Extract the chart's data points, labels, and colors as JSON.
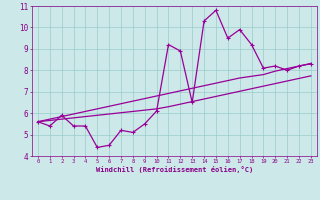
{
  "xlabel": "Windchill (Refroidissement éolien,°C)",
  "x": [
    0,
    1,
    2,
    3,
    4,
    5,
    6,
    7,
    8,
    9,
    10,
    11,
    12,
    13,
    14,
    15,
    16,
    17,
    18,
    19,
    20,
    21,
    22,
    23
  ],
  "y_data": [
    5.6,
    5.4,
    5.9,
    5.4,
    5.4,
    4.4,
    4.5,
    5.2,
    5.1,
    5.5,
    6.1,
    9.2,
    8.9,
    6.5,
    10.3,
    10.8,
    9.5,
    9.9,
    9.2,
    8.1,
    8.2,
    8.0,
    8.2,
    8.3
  ],
  "y_upper": [
    5.6,
    5.72,
    5.84,
    5.96,
    6.08,
    6.2,
    6.32,
    6.44,
    6.56,
    6.68,
    6.8,
    6.92,
    7.04,
    7.16,
    7.28,
    7.4,
    7.52,
    7.64,
    7.72,
    7.8,
    7.96,
    8.08,
    8.2,
    8.32
  ],
  "y_lower": [
    5.6,
    5.66,
    5.72,
    5.78,
    5.84,
    5.9,
    5.96,
    6.02,
    6.08,
    6.14,
    6.2,
    6.3,
    6.42,
    6.54,
    6.66,
    6.78,
    6.9,
    7.02,
    7.14,
    7.26,
    7.38,
    7.5,
    7.62,
    7.74
  ],
  "ylim": [
    4,
    11
  ],
  "yticks": [
    4,
    5,
    6,
    7,
    8,
    9,
    10,
    11
  ],
  "xlim": [
    -0.5,
    23.5
  ],
  "line_color": "#990099",
  "bg_color": "#cce8e8",
  "grid_color": "#99cccc",
  "label_color": "#880088"
}
